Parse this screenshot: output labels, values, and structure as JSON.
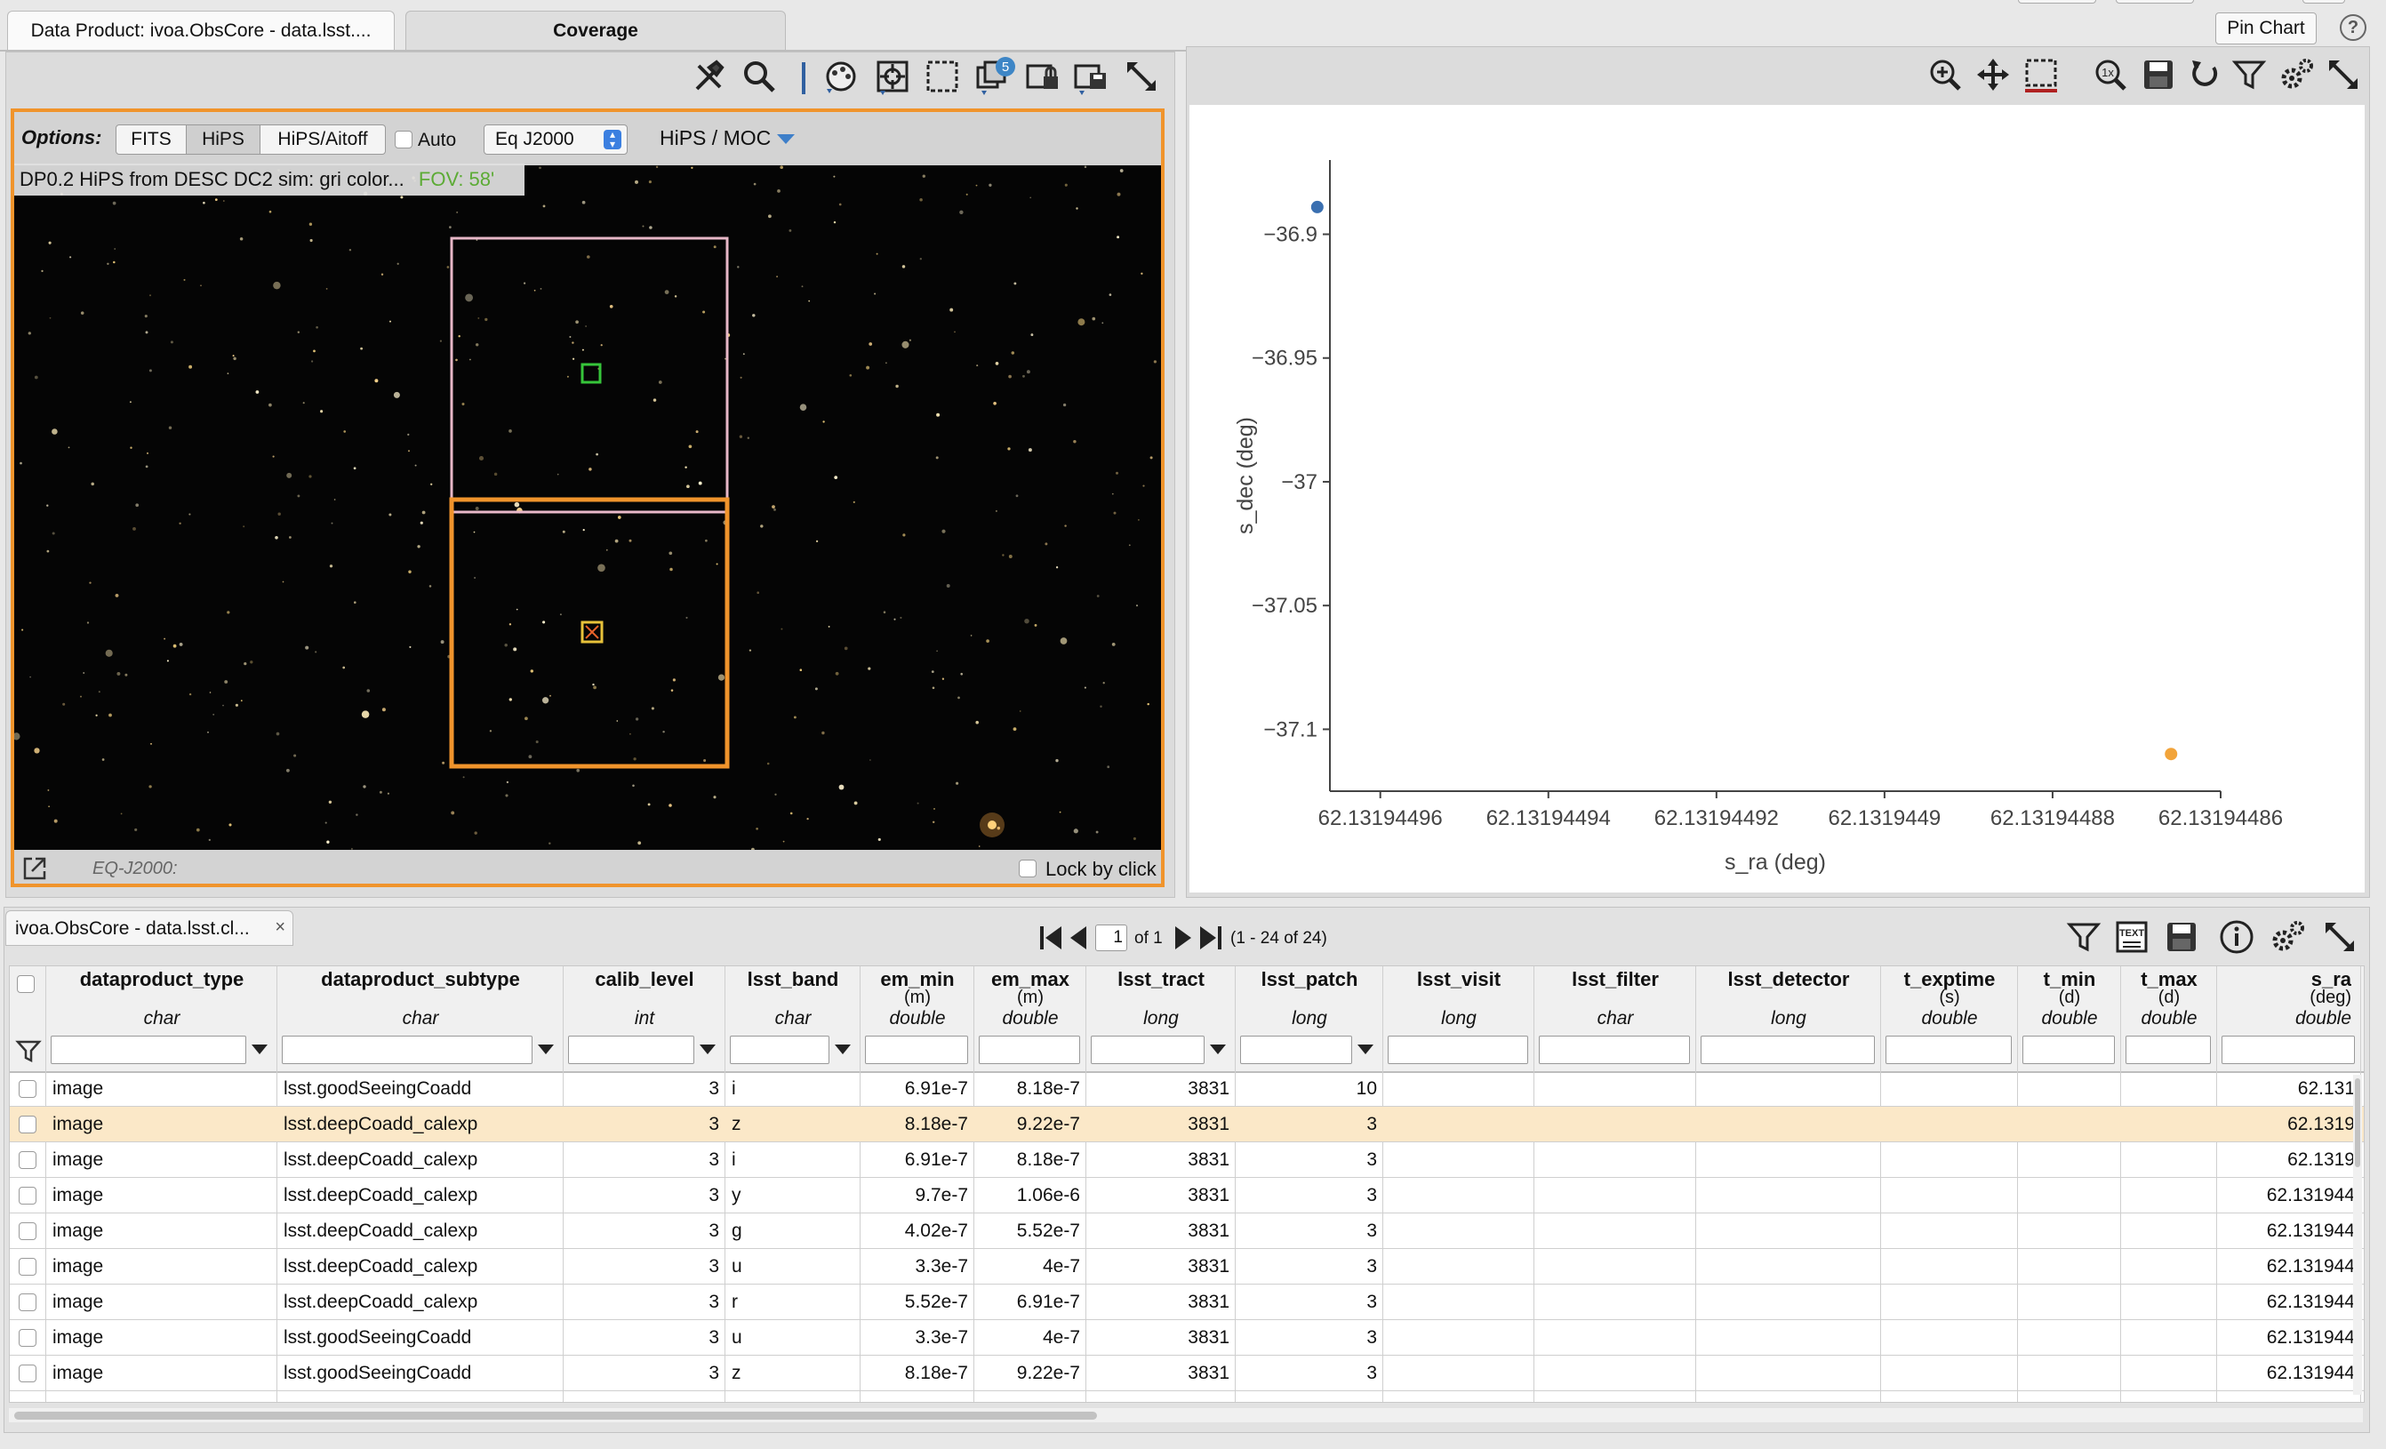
{
  "tabs": {
    "data_product": "Data Product: ivoa.ObsCore - data.lsst....",
    "coverage": "Coverage"
  },
  "top_right": {
    "pin_chart": "Pin Chart",
    "help": "?"
  },
  "image_panel": {
    "options_label": "Options:",
    "buttons": [
      "FITS",
      "HiPS",
      "HiPS/Aitoff"
    ],
    "active_button": "HiPS",
    "auto_label": "Auto",
    "coord_select": "Eq J2000",
    "hips_moc": "HiPS / MOC",
    "title": "DP0.2 HiPS from DESC DC2 sim: gri color...",
    "fov": "FOV: 58'",
    "coord_readout": "EQ-J2000:",
    "lock_by_click": "Lock by click",
    "badge_count": "5",
    "colors": {
      "highlight": "#f0942c",
      "pink": "#e8b8c8",
      "green": "#36c53a",
      "fov": "#5cab35"
    }
  },
  "chart": {
    "icons": [
      "zoom-in-icon",
      "pan-icon",
      "select-icon",
      "zoom-1x-icon",
      "save-icon",
      "restore-icon",
      "filter-icon",
      "settings-icon",
      "expand-icon"
    ]
  },
  "chart_data": {
    "type": "scatter",
    "xlabel": "s_ra (deg)",
    "ylabel": "s_dec (deg)",
    "x_ticks": [
      "62.13194496",
      "62.13194494",
      "62.13194492",
      "62.1319449",
      "62.13194488",
      "62.13194486"
    ],
    "y_ticks": [
      "−36.9",
      "−36.95",
      "−37",
      "−37.05",
      "−37.1"
    ],
    "x_tick_values": [
      62.13194496,
      62.13194494,
      62.13194492,
      62.1319449,
      62.13194488,
      62.13194486
    ],
    "y_tick_values": [
      -36.9,
      -36.95,
      -37.0,
      -37.05,
      -37.1
    ],
    "xlim": [
      62.131944966,
      62.13194486
    ],
    "ylim": [
      -37.125,
      -36.87
    ],
    "points": [
      {
        "x": 62.1319449675,
        "y": -36.889,
        "color": "#3a6fb0"
      },
      {
        "x": 62.1319448659,
        "y": -37.11,
        "color": "#f2a43a"
      }
    ]
  },
  "table": {
    "tab_label": "ivoa.ObsCore - data.lsst.cl...",
    "page_input": "1",
    "of_label": "of 1",
    "range_label": "(1 - 24 of 24)",
    "columns": [
      {
        "name": "dataproduct_type",
        "unit": "",
        "type": "char",
        "filter": true
      },
      {
        "name": "dataproduct_subtype",
        "unit": "",
        "type": "char",
        "filter": true
      },
      {
        "name": "calib_level",
        "unit": "",
        "type": "int",
        "filter": true
      },
      {
        "name": "lsst_band",
        "unit": "",
        "type": "char",
        "filter": true
      },
      {
        "name": "em_min",
        "unit": "(m)",
        "type": "double",
        "filter": false
      },
      {
        "name": "em_max",
        "unit": "(m)",
        "type": "double",
        "filter": false
      },
      {
        "name": "lsst_tract",
        "unit": "",
        "type": "long",
        "filter": true
      },
      {
        "name": "lsst_patch",
        "unit": "",
        "type": "long",
        "filter": true
      },
      {
        "name": "lsst_visit",
        "unit": "",
        "type": "long",
        "filter": false
      },
      {
        "name": "lsst_filter",
        "unit": "",
        "type": "char",
        "filter": false
      },
      {
        "name": "lsst_detector",
        "unit": "",
        "type": "long",
        "filter": false
      },
      {
        "name": "t_exptime",
        "unit": "(s)",
        "type": "double",
        "filter": false
      },
      {
        "name": "t_min",
        "unit": "(d)",
        "type": "double",
        "filter": false
      },
      {
        "name": "t_max",
        "unit": "(d)",
        "type": "double",
        "filter": false
      },
      {
        "name": "s_ra",
        "unit": "(deg)",
        "type": "double",
        "filter": false
      }
    ],
    "rows": [
      [
        "image",
        "lsst.goodSeeingCoadd",
        "3",
        "i",
        "6.91e-7",
        "8.18e-7",
        "3831",
        "10",
        "",
        "",
        "",
        "",
        "",
        "",
        "62.131"
      ],
      [
        "image",
        "lsst.deepCoadd_calexp",
        "3",
        "z",
        "8.18e-7",
        "9.22e-7",
        "3831",
        "3",
        "",
        "",
        "",
        "",
        "",
        "",
        "62.1319"
      ],
      [
        "image",
        "lsst.deepCoadd_calexp",
        "3",
        "i",
        "6.91e-7",
        "8.18e-7",
        "3831",
        "3",
        "",
        "",
        "",
        "",
        "",
        "",
        "62.1319"
      ],
      [
        "image",
        "lsst.deepCoadd_calexp",
        "3",
        "y",
        "9.7e-7",
        "1.06e-6",
        "3831",
        "3",
        "",
        "",
        "",
        "",
        "",
        "",
        "62.131944"
      ],
      [
        "image",
        "lsst.deepCoadd_calexp",
        "3",
        "g",
        "4.02e-7",
        "5.52e-7",
        "3831",
        "3",
        "",
        "",
        "",
        "",
        "",
        "",
        "62.131944"
      ],
      [
        "image",
        "lsst.deepCoadd_calexp",
        "3",
        "u",
        "3.3e-7",
        "4e-7",
        "3831",
        "3",
        "",
        "",
        "",
        "",
        "",
        "",
        "62.131944"
      ],
      [
        "image",
        "lsst.deepCoadd_calexp",
        "3",
        "r",
        "5.52e-7",
        "6.91e-7",
        "3831",
        "3",
        "",
        "",
        "",
        "",
        "",
        "",
        "62.131944"
      ],
      [
        "image",
        "lsst.goodSeeingCoadd",
        "3",
        "u",
        "3.3e-7",
        "4e-7",
        "3831",
        "3",
        "",
        "",
        "",
        "",
        "",
        "",
        "62.131944"
      ],
      [
        "image",
        "lsst.goodSeeingCoadd",
        "3",
        "z",
        "8.18e-7",
        "9.22e-7",
        "3831",
        "3",
        "",
        "",
        "",
        "",
        "",
        "",
        "62.131944"
      ]
    ],
    "selected_row": 1,
    "colors": {
      "selected": "#fbe8c8"
    }
  }
}
